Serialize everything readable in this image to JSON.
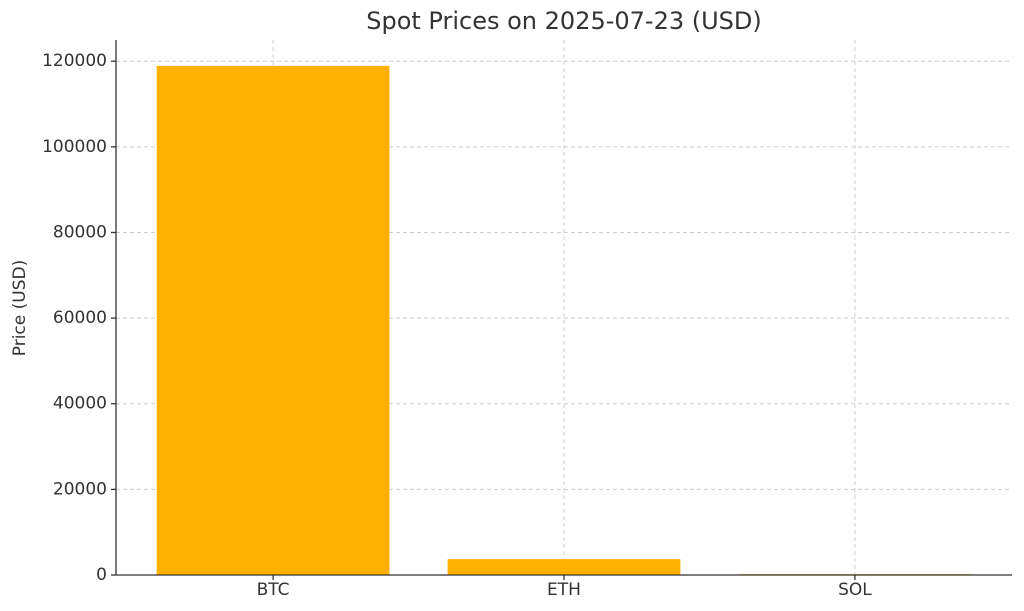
{
  "chart_data": {
    "type": "bar",
    "title": "Spot Prices on 2025-07-23 (USD)",
    "y_label": "Price (USD)",
    "categories": [
      "BTC",
      "ETH",
      "SOL"
    ],
    "values": [
      118900,
      3700,
      190
    ],
    "color": "#ffb000",
    "ylim": [
      0,
      124950
    ],
    "yticks": [
      0,
      20000,
      40000,
      60000,
      80000,
      100000,
      120000
    ],
    "grid": true
  }
}
